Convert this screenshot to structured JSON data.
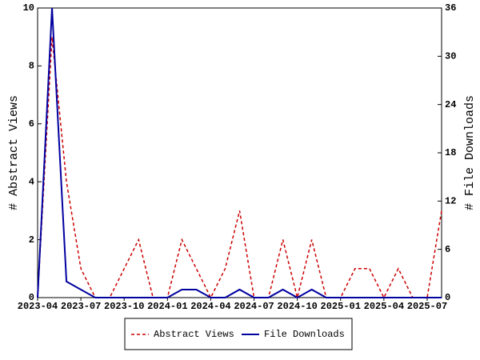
{
  "chart_data": {
    "type": "line",
    "categories": [
      "2023-04",
      null,
      null,
      "2023-07",
      null,
      null,
      "2023-10",
      null,
      null,
      "2024-01",
      null,
      null,
      "2024-04",
      null,
      null,
      "2024-07",
      null,
      null,
      "2024-10",
      null,
      null,
      "2025-01",
      null,
      null,
      "2025-04",
      null,
      null,
      "2025-07",
      null
    ],
    "series": [
      {
        "name": "Abstract Views",
        "color": "#cc0000",
        "values": [
          0,
          9,
          4,
          1,
          0,
          0,
          1,
          2,
          0,
          0,
          2,
          1,
          0,
          1,
          3,
          0,
          0,
          2,
          0,
          2,
          0,
          0,
          1,
          1,
          0,
          1,
          0,
          0,
          3
        ]
      },
      {
        "name": "File Downloads",
        "color": "#0000a0",
        "axis": "y2",
        "values": [
          0,
          36,
          2,
          1,
          0,
          0,
          0,
          0,
          0,
          0,
          1,
          1,
          0,
          0,
          1,
          0,
          0,
          1,
          0,
          1,
          0,
          0,
          0,
          0,
          0,
          0,
          0,
          0,
          0
        ]
      }
    ],
    "ylabel": "# Abstract Views",
    "y2label": "# File Downloads",
    "ylim": [
      0,
      10
    ],
    "yticks": [
      0,
      2,
      4,
      6,
      8,
      10
    ],
    "y2lim": [
      0,
      36
    ],
    "y2ticks": [
      0,
      6,
      12,
      18,
      24,
      30,
      36
    ],
    "legend": "bottom"
  }
}
